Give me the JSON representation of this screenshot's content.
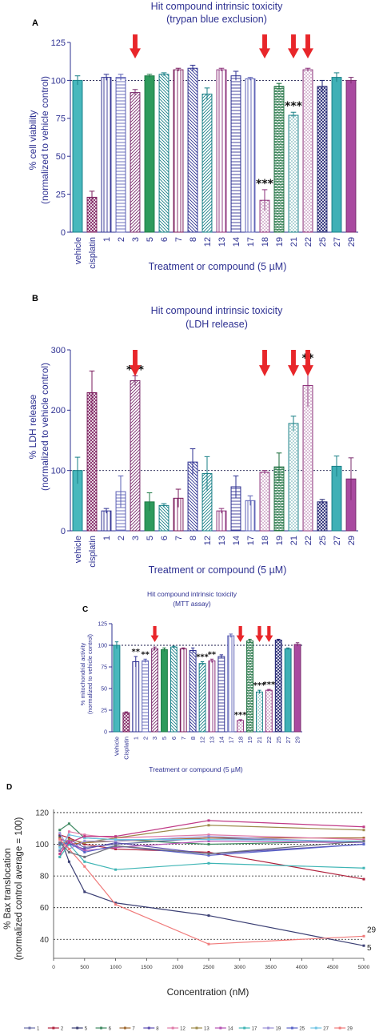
{
  "chart_data": [
    {
      "panel": "A",
      "type": "bar",
      "title": "Hit compound intrinsic toxicity",
      "subtitle": "(trypan blue exclusion)",
      "xlabel": "Treatment or compound (5 µM)",
      "ylabel": [
        "% cell viability",
        "(normalized to vehicle control)"
      ],
      "categories": [
        "vehicle",
        "cisplatin",
        "1",
        "2",
        "3",
        "5",
        "6",
        "7",
        "8",
        "12",
        "13",
        "14",
        "17",
        "18",
        "19",
        "21",
        "22",
        "25",
        "27",
        "29"
      ],
      "values": [
        100,
        23,
        102,
        102,
        92,
        103,
        104,
        107,
        108,
        91,
        107,
        103,
        101,
        21,
        96,
        77,
        107,
        96,
        102,
        100
      ],
      "errors": [
        3,
        4,
        2,
        2,
        2,
        1,
        1,
        1,
        2,
        4,
        1,
        3,
        1,
        7,
        2,
        2,
        1,
        4,
        3,
        2
      ],
      "ylim": [
        0,
        125
      ],
      "yticks": [
        0,
        25,
        50,
        75,
        100,
        125
      ],
      "reference_line": 100,
      "significance": [
        {
          "category": "18",
          "label": "***"
        },
        {
          "category": "21",
          "label": "***"
        }
      ],
      "arrows": [
        "3",
        "18",
        "21",
        "22"
      ]
    },
    {
      "panel": "B",
      "type": "bar",
      "title": "Hit compound intrinsic toxicity",
      "subtitle": "(LDH release)",
      "xlabel": "Treatment or compound (5 µM)",
      "ylabel": [
        "% LDH release",
        "(normalized to vehicle control)"
      ],
      "categories": [
        "vehicle",
        "cisplatin",
        "1",
        "2",
        "3",
        "5",
        "6",
        "7",
        "8",
        "12",
        "13",
        "14",
        "17",
        "18",
        "19",
        "21",
        "22",
        "25",
        "27",
        "29"
      ],
      "values": [
        100,
        229,
        33,
        65,
        249,
        48,
        42,
        54,
        114,
        95,
        33,
        73,
        50,
        97,
        106,
        178,
        241,
        48,
        107,
        86
      ],
      "errors": [
        22,
        36,
        4,
        26,
        8,
        15,
        3,
        15,
        22,
        28,
        4,
        18,
        8,
        3,
        23,
        12,
        35,
        4,
        17,
        35
      ],
      "ylim": [
        0,
        300
      ],
      "yticks": [
        0,
        100,
        200,
        300
      ],
      "reference_line": 100,
      "significance": [
        {
          "category": "3",
          "label": "***"
        },
        {
          "category": "22",
          "label": "**"
        }
      ],
      "arrows": [
        "3",
        "18",
        "21",
        "22"
      ]
    },
    {
      "panel": "C",
      "type": "bar",
      "title": "Hit compound intrinsic toxicity",
      "subtitle": "(MTT assay)",
      "xlabel": "Treatment or compound (5 µM)",
      "ylabel": [
        "% mitochondrial activity",
        "(normalized to vehicle control)"
      ],
      "categories": [
        "Vehicle",
        "Cisplatin",
        "1",
        "2",
        "3",
        "5",
        "6",
        "7",
        "8",
        "12",
        "13",
        "14",
        "17",
        "18",
        "19",
        "21",
        "22",
        "25",
        "27",
        "29"
      ],
      "values": [
        100,
        22,
        81,
        82,
        96,
        95,
        98,
        96,
        94,
        79,
        82,
        87,
        111,
        13,
        105,
        46,
        48,
        106,
        96,
        101
      ],
      "errors": [
        4,
        1,
        6,
        2,
        2,
        2,
        1,
        1,
        3,
        2,
        2,
        2,
        2,
        1,
        2,
        2,
        1,
        1,
        1,
        2
      ],
      "ylim": [
        0,
        125
      ],
      "yticks": [
        0,
        25,
        50,
        75,
        100,
        125
      ],
      "reference_line": 100,
      "significance": [
        {
          "category": "1",
          "label": "**"
        },
        {
          "category": "2",
          "label": "**"
        },
        {
          "category": "12",
          "label": "***"
        },
        {
          "category": "13",
          "label": "**"
        },
        {
          "category": "18",
          "label": "***"
        },
        {
          "category": "21",
          "label": "***"
        },
        {
          "category": "22",
          "label": "***"
        }
      ],
      "arrows": [
        "3",
        "18",
        "21",
        "22"
      ]
    },
    {
      "panel": "D",
      "type": "line",
      "xlabel": "Concentration (nM)",
      "ylabel": [
        "% Bax translocation",
        "(normalized control average = 100)"
      ],
      "x": [
        100,
        250,
        500,
        1000,
        2500,
        5000
      ],
      "xlim": [
        0,
        5000
      ],
      "xticks": [
        0,
        500,
        1000,
        1500,
        2000,
        2500,
        3000,
        3500,
        4000,
        4500,
        5000
      ],
      "ylim": [
        28,
        122
      ],
      "yticks": [
        40,
        60,
        80,
        100,
        120
      ],
      "gridlines": [
        40,
        60,
        80,
        100,
        120
      ],
      "end_labels": [
        {
          "series": "29",
          "text": "29"
        },
        {
          "series": "5",
          "text": "5"
        }
      ],
      "series": [
        {
          "name": "1",
          "color": "#6b6fa8",
          "values": [
            96,
            103,
            98,
            100,
            104,
            101
          ]
        },
        {
          "name": "2",
          "color": "#b0233e",
          "values": [
            106,
            104,
            100,
            97,
            95,
            78
          ]
        },
        {
          "name": "5",
          "color": "#3b3f74",
          "values": [
            105,
            89,
            70,
            63,
            55,
            36
          ]
        },
        {
          "name": "6",
          "color": "#3f8a62",
          "values": [
            109,
            113,
            104,
            103,
            100,
            102
          ]
        },
        {
          "name": "7",
          "color": "#a06a30",
          "values": [
            104,
            100,
            101,
            102,
            104,
            104
          ]
        },
        {
          "name": "8",
          "color": "#5b4bb0",
          "values": [
            101,
            100,
            97,
            101,
            94,
            100
          ]
        },
        {
          "name": "12",
          "color": "#e07aa8",
          "values": [
            92,
            108,
            106,
            104,
            106,
            103
          ]
        },
        {
          "name": "13",
          "color": "#9e8b4c",
          "values": [
            99,
            103,
            101,
            104,
            112,
            109
          ]
        },
        {
          "name": "14",
          "color": "#b552b3",
          "values": [
            103,
            102,
            96,
            98,
            102,
            101
          ]
        },
        {
          "name": "17",
          "color": "#3fb5b5",
          "values": [
            92,
            100,
            89,
            84,
            88,
            85
          ]
        },
        {
          "name": "19",
          "color": "#9a8fd6",
          "values": [
            107,
            97,
            102,
            102,
            105,
            101
          ]
        },
        {
          "name": "25",
          "color": "#5a64c8",
          "values": [
            100,
            101,
            95,
            99,
            93,
            100
          ]
        },
        {
          "name": "27",
          "color": "#6fc4e4",
          "values": [
            98,
            106,
            104,
            103,
            103,
            102
          ]
        },
        {
          "name": "29",
          "color": "#f07a7a",
          "values": [
            103,
            97,
            86,
            62,
            37,
            42
          ]
        },
        {
          "name": "",
          "color": "#c03a86",
          "values": [
            94,
            101,
            105,
            105,
            115,
            111
          ]
        },
        {
          "name": "",
          "color": "#6c6f7a",
          "values": [
            101,
            95,
            92,
            99,
            94,
            102
          ]
        }
      ]
    }
  ]
}
